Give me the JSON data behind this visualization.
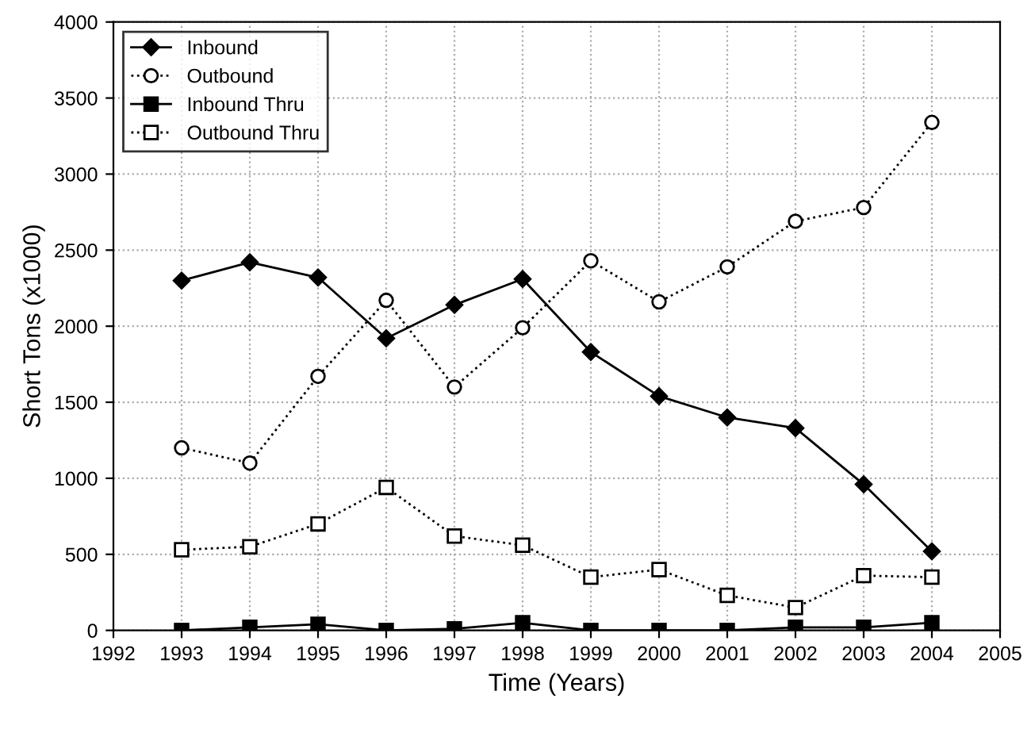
{
  "chart_data": {
    "type": "line",
    "xlabel": "Time (Years)",
    "ylabel": "Short Tons (x1000)",
    "x": [
      1993,
      1994,
      1995,
      1996,
      1997,
      1998,
      1999,
      2000,
      2001,
      2002,
      2003,
      2004
    ],
    "series": [
      {
        "name": "Inbound",
        "color": "#000000",
        "marker": "diamond",
        "line_style": "solid",
        "values": [
          2300,
          2420,
          2320,
          1920,
          2140,
          2310,
          1830,
          1540,
          1400,
          1330,
          960,
          520
        ]
      },
      {
        "name": "Outbound",
        "color": "#000000",
        "marker": "circle",
        "line_style": "dotted",
        "values": [
          1200,
          1100,
          1670,
          2170,
          1600,
          1990,
          2430,
          2160,
          2390,
          2690,
          2780,
          3340
        ]
      },
      {
        "name": "Inbound Thru",
        "color": "#000000",
        "marker": "square",
        "line_style": "solid",
        "values": [
          0,
          20,
          40,
          0,
          10,
          50,
          0,
          0,
          0,
          20,
          20,
          50
        ]
      },
      {
        "name": "Outbound Thru",
        "color": "#000000",
        "marker": "square",
        "line_style": "dotted",
        "values": [
          530,
          550,
          700,
          940,
          620,
          560,
          350,
          400,
          230,
          150,
          360,
          350
        ]
      }
    ],
    "xlim": [
      1992,
      2005
    ],
    "xticks": [
      1992,
      1993,
      1994,
      1995,
      1996,
      1997,
      1998,
      1999,
      2000,
      2001,
      2002,
      2003,
      2004,
      2005
    ],
    "ylim": [
      0,
      4000
    ],
    "yticks": [
      0,
      500,
      1000,
      1500,
      2000,
      2500,
      3000,
      3500,
      4000
    ],
    "grid": true,
    "legend": "top left"
  }
}
